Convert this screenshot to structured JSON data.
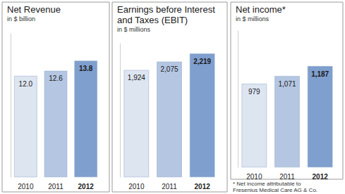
{
  "chart_data": [
    {
      "type": "bar",
      "title": "Net Revenue",
      "subtitle": "in $ billion",
      "categories": [
        "2010",
        "2011",
        "2012"
      ],
      "values": [
        12.0,
        12.6,
        13.8
      ],
      "value_labels": [
        "12.0",
        "12.6",
        "13.8"
      ],
      "colors": [
        "#dde5f1",
        "#b4c6e2",
        "#7f9fce"
      ],
      "ylim": [
        0,
        17
      ],
      "grid": false,
      "data_labels": true,
      "tick_labels": "x"
    },
    {
      "type": "bar",
      "title": "Earnings before Interest and Taxes (EBIT)",
      "subtitle": "in $ millions",
      "categories": [
        "2010",
        "2011",
        "2012"
      ],
      "values": [
        1924,
        2075,
        2219
      ],
      "value_labels": [
        "1,924",
        "2,075",
        "2,219"
      ],
      "colors": [
        "#dde5f1",
        "#b4c6e2",
        "#7f9fce"
      ],
      "ylim": [
        0,
        2400
      ],
      "grid": false,
      "data_labels": true,
      "tick_labels": "x"
    },
    {
      "type": "bar",
      "title": "Net income*",
      "subtitle": "in $ millions",
      "categories": [
        "2010",
        "2011",
        "2012"
      ],
      "values": [
        979,
        1071,
        1187
      ],
      "value_labels": [
        "979",
        "1,071",
        "1,187"
      ],
      "colors": [
        "#dde5f1",
        "#b4c6e2",
        "#7f9fce"
      ],
      "ylim": [
        0,
        1600
      ],
      "grid": false,
      "data_labels": true,
      "tick_labels": "x",
      "annotations": [
        "* Net income attributable to Fresenius Medical Care AG & Co. KGaA."
      ]
    }
  ]
}
